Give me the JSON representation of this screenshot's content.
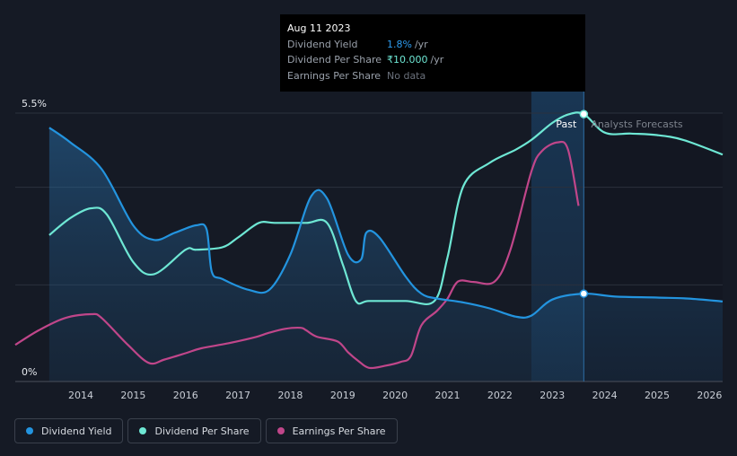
{
  "tooltip": {
    "date": "Aug 11 2023",
    "rows": [
      {
        "label": "Dividend Yield",
        "value": "1.8%",
        "unit": "/yr"
      },
      {
        "label": "Dividend Per Share",
        "value": "₹10.000",
        "unit": "/yr"
      },
      {
        "label": "Earnings Per Share",
        "value": "No data",
        "unit": ""
      }
    ]
  },
  "colors": {
    "dividend_yield": "#2394df",
    "dividend_per_share": "#6ee7d4",
    "earnings_per_share": "#c0468a",
    "tooltip_yield": "#2d9cf0",
    "tooltip_dps": "#6ee7d4",
    "tooltip_nodata": "#6b717c"
  },
  "legend": [
    {
      "label": "Dividend Yield",
      "color": "#2394df"
    },
    {
      "label": "Dividend Per Share",
      "color": "#6ee7d4"
    },
    {
      "label": "Earnings Per Share",
      "color": "#c0468a"
    }
  ],
  "chart_data": {
    "type": "line",
    "title": "",
    "xlabel": "",
    "ylabel": "",
    "ylim": [
      0,
      5.5
    ],
    "xlim": [
      2012.75,
      2026.25
    ],
    "y_tick_labels": [
      "5.5%",
      "0%"
    ],
    "x_tick_labels": [
      "2014",
      "2015",
      "2016",
      "2017",
      "2018",
      "2019",
      "2020",
      "2021",
      "2022",
      "2023",
      "2024",
      "2025",
      "2026"
    ],
    "x_ticks": [
      2014,
      2015,
      2016,
      2017,
      2018,
      2019,
      2020,
      2021,
      2022,
      2023,
      2024,
      2025,
      2026
    ],
    "gridlines_y": [
      5.5,
      3.98,
      1.98
    ],
    "regions": {
      "past_label": "Past",
      "forecast_label": "Analysts Forecasts",
      "forecast_start": 2023.6,
      "shade_start": 2022.6
    },
    "highlight_x": 2023.6,
    "series": [
      {
        "name": "Dividend Yield",
        "unit": "%",
        "x": [
          2013.4,
          2013.8,
          2014.4,
          2015.0,
          2015.4,
          2015.8,
          2016.2,
          2016.4,
          2016.5,
          2016.7,
          2017.2,
          2017.6,
          2018.0,
          2018.4,
          2018.7,
          2019.1,
          2019.35,
          2019.45,
          2019.7,
          2020.2,
          2020.5,
          2020.8,
          2021.3,
          2021.8,
          2022.3,
          2022.6,
          2023.0,
          2023.6,
          2024.2,
          2025.0,
          2025.6,
          2026.25
        ],
        "values": [
          5.2,
          4.9,
          4.35,
          3.2,
          2.9,
          3.05,
          3.2,
          3.12,
          2.25,
          2.1,
          1.88,
          1.88,
          2.6,
          3.8,
          3.75,
          2.6,
          2.5,
          3.05,
          2.95,
          2.15,
          1.8,
          1.7,
          1.62,
          1.5,
          1.33,
          1.35,
          1.68,
          1.8,
          1.74,
          1.72,
          1.7,
          1.64
        ]
      },
      {
        "name": "Dividend Per Share",
        "unit": "INR",
        "x": [
          2013.4,
          2013.8,
          2014.2,
          2014.5,
          2015.0,
          2015.4,
          2016.0,
          2016.2,
          2016.7,
          2017.0,
          2017.4,
          2017.7,
          2018.3,
          2018.7,
          2019.0,
          2019.25,
          2019.5,
          2020.2,
          2020.75,
          2021.0,
          2021.3,
          2021.8,
          2022.3,
          2022.6,
          2023.0,
          2023.3,
          2023.6,
          2024.0,
          2024.5,
          2025.0,
          2025.5,
          2026.25
        ],
        "values": [
          3.0,
          3.35,
          3.55,
          3.42,
          2.45,
          2.2,
          2.7,
          2.7,
          2.75,
          2.95,
          3.25,
          3.25,
          3.25,
          3.25,
          2.4,
          1.65,
          1.65,
          1.65,
          1.65,
          2.55,
          4.0,
          4.48,
          4.75,
          4.95,
          5.3,
          5.47,
          5.48,
          5.1,
          5.08,
          5.05,
          4.95,
          4.65
        ]
      },
      {
        "name": "Earnings Per Share",
        "unit": "INR",
        "x": [
          2012.75,
          2013.2,
          2013.7,
          2014.2,
          2014.4,
          2014.9,
          2015.3,
          2015.6,
          2016.0,
          2016.3,
          2016.8,
          2017.3,
          2017.6,
          2017.9,
          2018.2,
          2018.3,
          2018.5,
          2018.9,
          2019.1,
          2019.3,
          2019.5,
          2019.8,
          2020.1,
          2020.3,
          2020.5,
          2020.8,
          2021.0,
          2021.2,
          2021.5,
          2021.9,
          2022.2,
          2022.6,
          2022.8,
          2023.1,
          2023.3,
          2023.5
        ],
        "values": [
          0.75,
          1.05,
          1.3,
          1.38,
          1.3,
          0.75,
          0.38,
          0.45,
          0.58,
          0.68,
          0.78,
          0.9,
          1.0,
          1.08,
          1.1,
          1.05,
          0.92,
          0.82,
          0.6,
          0.42,
          0.28,
          0.32,
          0.4,
          0.52,
          1.15,
          1.45,
          1.7,
          2.05,
          2.04,
          2.05,
          2.7,
          4.3,
          4.72,
          4.9,
          4.75,
          3.6
        ]
      }
    ]
  }
}
